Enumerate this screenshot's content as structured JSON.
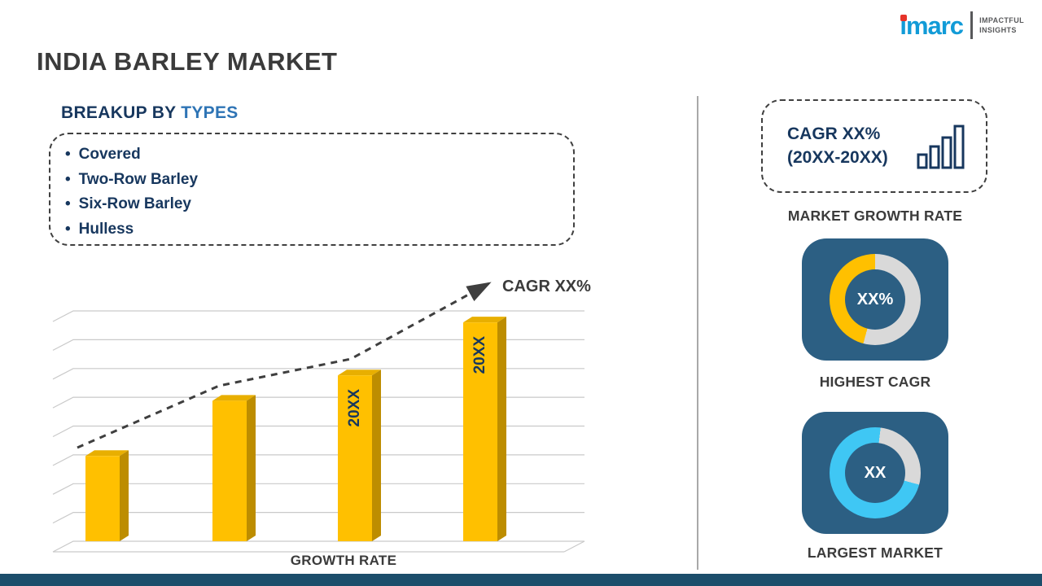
{
  "page": {
    "title": "INDIA BARLEY MARKET"
  },
  "logo": {
    "name": "imarc",
    "tagline_line1": "IMPACTFUL",
    "tagline_line2": "INSIGHTS"
  },
  "colors": {
    "accent_yellow": "#FFC000",
    "accent_cyan": "#3FC7F4",
    "panel_blue": "#2C5F83",
    "heading_navy": "#17375E",
    "heading_blue": "#2E74B5",
    "footer_navy": "#1C4E6B",
    "donut_gray": "#D9D9D9"
  },
  "breakup": {
    "heading_prefix": "BREAKUP BY ",
    "heading_highlight": "TYPES",
    "items": [
      "Covered",
      "Two-Row Barley",
      "Six-Row Barley",
      "Hulless"
    ]
  },
  "chart_data": {
    "type": "bar",
    "values": [
      37,
      61,
      72,
      95
    ],
    "ylim": [
      0,
      100
    ],
    "bar_labels": [
      "",
      "",
      "20XX",
      "20XX"
    ],
    "bar_color": "#FFC000",
    "bar_side_color": "#BD8D00",
    "bar_top_color": "#E8AF00",
    "trend_annotation": "CAGR XX%",
    "trendline": true,
    "grid": true,
    "xlabel": "GROWTH RATE"
  },
  "right_panel": {
    "cagr_box": {
      "line1": "CAGR XX%",
      "line2": "(20XX-20XX)"
    },
    "market_growth_label": "MARKET GROWTH RATE",
    "highest_cagr": {
      "value": "XX%",
      "label": "HIGHEST CAGR",
      "arc_color": "#FFC000",
      "arc_start_deg": 195,
      "arc_sweep_deg": 165
    },
    "largest_market": {
      "value": "XX",
      "label": "LARGEST MARKET",
      "arc_color": "#3FC7F4",
      "arc_start_deg": 105,
      "arc_sweep_deg": 262
    }
  }
}
